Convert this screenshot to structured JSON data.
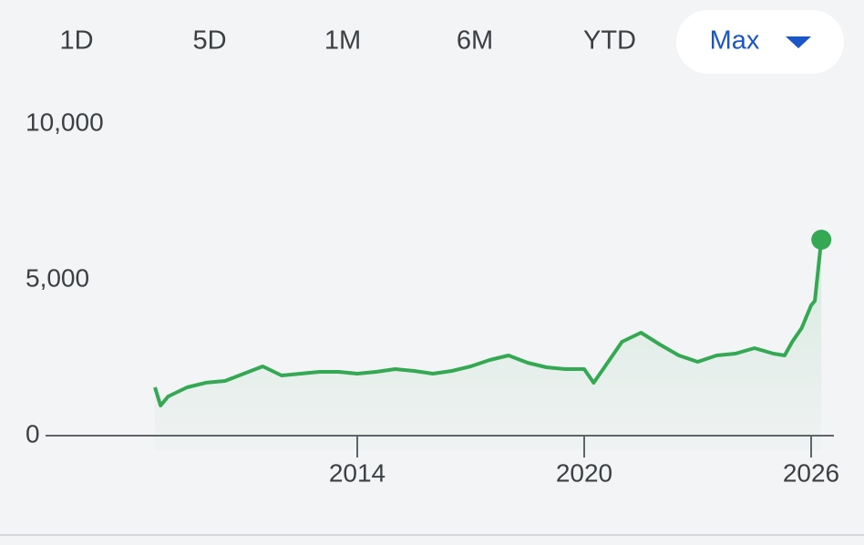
{
  "tabs": [
    "1D",
    "5D",
    "1M",
    "6M",
    "YTD",
    "Max"
  ],
  "selected_tab": 5,
  "chart_data": {
    "type": "line",
    "x": [
      2008.65,
      2008.8,
      2009,
      2009.5,
      2010,
      2010.5,
      2011,
      2011.5,
      2012,
      2012.5,
      2013,
      2013.5,
      2014,
      2014.5,
      2015,
      2015.5,
      2016,
      2016.5,
      2017,
      2017.5,
      2018,
      2018.5,
      2019,
      2019.5,
      2020,
      2020.25,
      2020.5,
      2021,
      2021.5,
      2022,
      2022.5,
      2023,
      2023.5,
      2024,
      2024.5,
      2025,
      2025.3,
      2025.5,
      2025.75,
      2026,
      2026.1,
      2026.2,
      2026.27
    ],
    "series": [
      {
        "color": "#34a853",
        "values": [
          1550,
          965,
          1257,
          1550,
          1700,
          1754,
          1988,
          2222,
          1930,
          1988,
          2047,
          2047,
          1988,
          2047,
          2135,
          2076,
          1988,
          2076,
          2222,
          2427,
          2573,
          2339,
          2193,
          2135,
          2135,
          1696,
          2135,
          3012,
          3304,
          2924,
          2573,
          2368,
          2573,
          2632,
          2807,
          2632,
          2573,
          3012,
          3450,
          4181,
          4327,
          5497,
          6287
        ]
      }
    ],
    "xlim": [
      2005.8,
      2026.6
    ],
    "xticks": [
      2014,
      2020,
      2026
    ],
    "ylim": [
      0,
      10000
    ],
    "yticks": [
      {
        "value": 10000,
        "label": "10,000"
      },
      {
        "value": 5000,
        "label": "5,000"
      },
      0
    ]
  }
}
